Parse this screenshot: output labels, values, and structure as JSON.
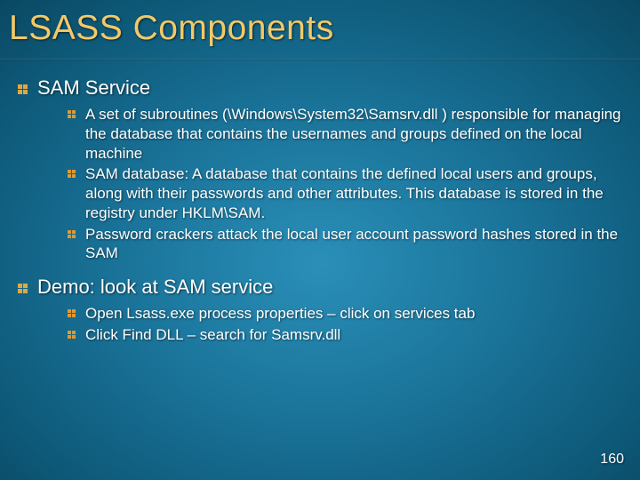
{
  "title": "LSASS Components",
  "title_color": "#f2c968",
  "title_fontsize": 39,
  "background_gradient": [
    "#2a8fb8",
    "#1a7399",
    "#0e5a7a",
    "#083f56",
    "#042935",
    "#021a23"
  ],
  "bullet_color": "#e0a840",
  "sub_bullet_color": "#d89a38",
  "text_color": "#ffffff",
  "section_fontsize": 22,
  "sub_fontsize": 17,
  "page_number": "160",
  "sections": [
    {
      "header": "SAM Service",
      "items": [
        "A set of subroutines (\\Windows\\System32\\Samsrv.dll ) responsible for managing the database that contains the usernames and groups defined on the local machine",
        "SAM database: A database that contains the defined local users and groups, along with their passwords and other attributes. This database is stored in the registry under HKLM\\SAM.",
        "Password crackers attack the local user account password hashes stored in the SAM"
      ]
    },
    {
      "header": "Demo: look at SAM service",
      "items": [
        "Open Lsass.exe process properties – click on services tab",
        "Click Find DLL – search for Samsrv.dll"
      ]
    }
  ]
}
